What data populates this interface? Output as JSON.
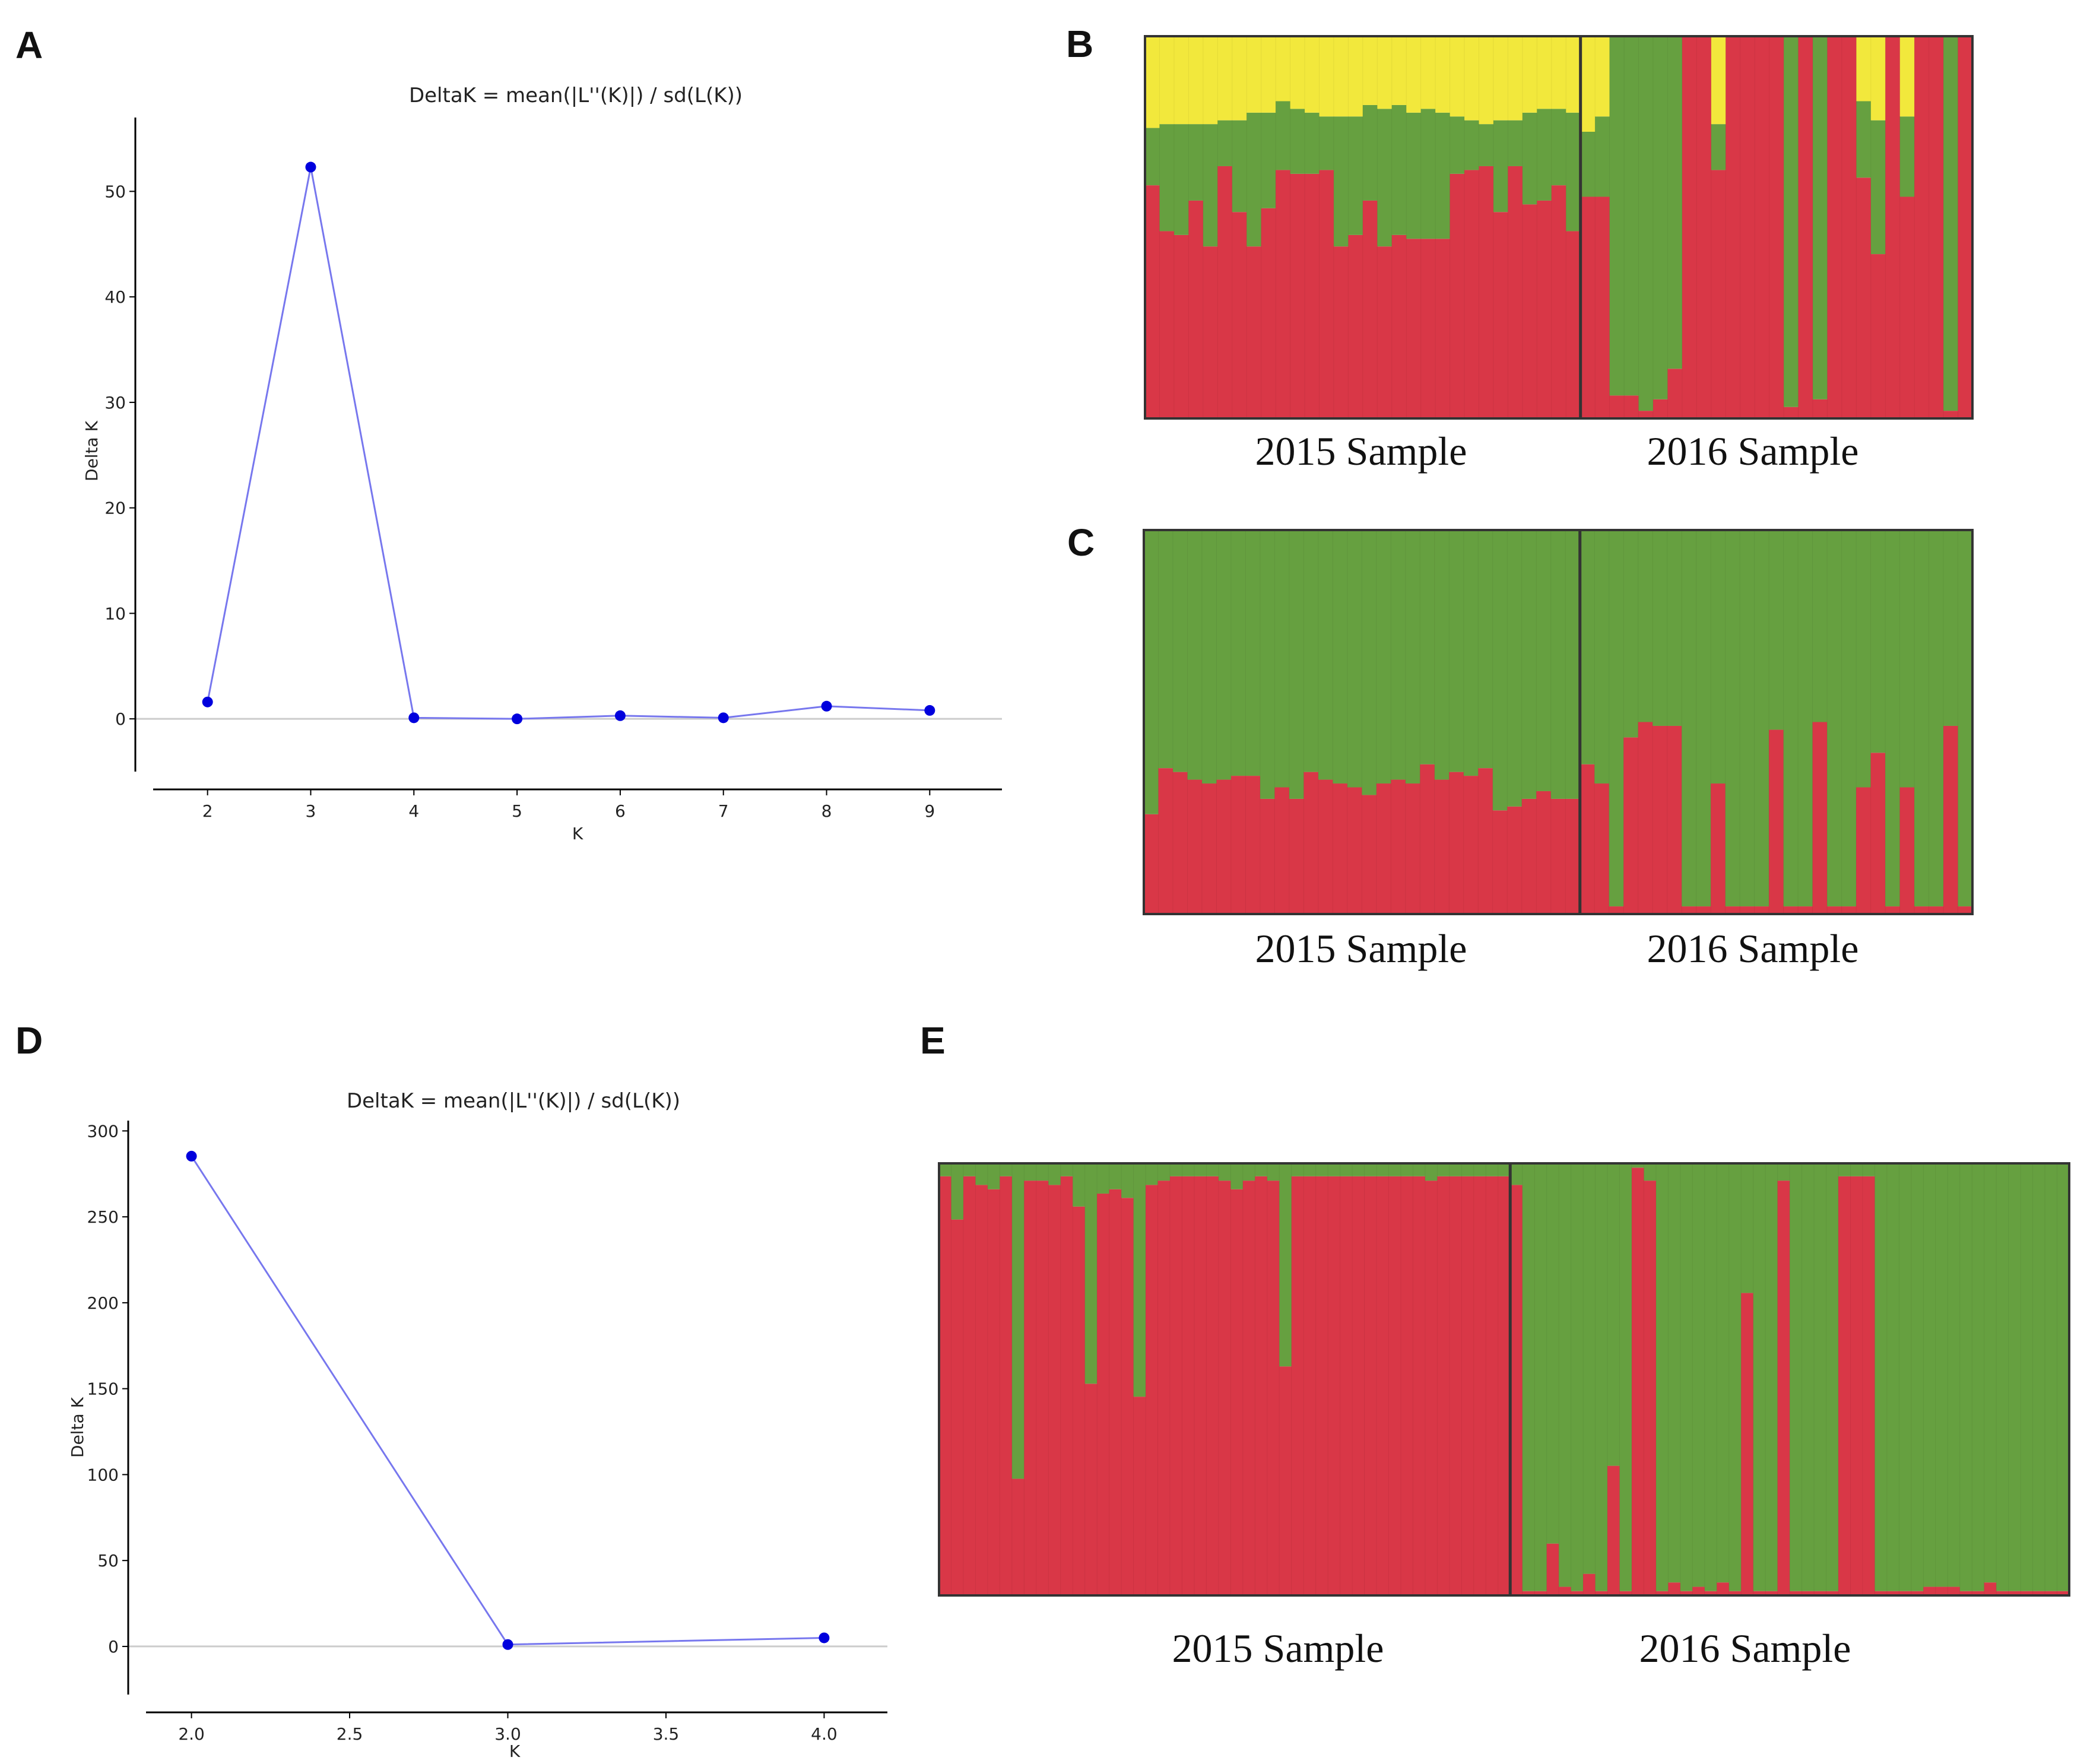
{
  "figure": {
    "panel_letters": {
      "A": "A",
      "B": "B",
      "C": "C",
      "D": "D",
      "E": "E"
    }
  },
  "colors": {
    "line": "#7777ee",
    "marker": "#0000dd",
    "axis": "#000000",
    "zero_line": "#cccccc",
    "cluster_red": "#d93747",
    "cluster_green": "#66a040",
    "cluster_yellow": "#f2e83c",
    "divider": "#333333"
  },
  "chart_data": [
    {
      "panel": "A",
      "type": "line",
      "title": "DeltaK = mean(|L''(K)|) / sd(L(K))",
      "xlabel": "K",
      "ylabel": "Delta K",
      "x": [
        2,
        3,
        4,
        5,
        6,
        7,
        8,
        9
      ],
      "values": [
        1.6,
        52.3,
        0.1,
        0.0,
        0.3,
        0.1,
        1.2,
        0.8
      ],
      "xlim": [
        1.3,
        9.7
      ],
      "ylim": [
        -5,
        57
      ],
      "xticks": [
        2,
        3,
        4,
        5,
        6,
        7,
        8,
        9
      ],
      "xtick_labels": [
        "2",
        "3",
        "4",
        "5",
        "6",
        "7",
        "8",
        "9"
      ],
      "yticks": [
        0,
        10,
        20,
        30,
        40,
        50
      ],
      "ytick_labels": [
        "0",
        "10",
        "20",
        "30",
        "40",
        "50"
      ]
    },
    {
      "panel": "B",
      "type": "bar",
      "stacked": true,
      "title": "",
      "ylim": [
        0,
        1
      ],
      "group_labels": [
        "2015 Sample",
        "2016 Sample"
      ],
      "group_sizes": [
        30,
        27
      ],
      "cluster_order": [
        "red",
        "green",
        "yellow"
      ],
      "series": [
        {
          "name": "red",
          "values": [
            0.61,
            0.49,
            0.48,
            0.57,
            0.45,
            0.66,
            0.54,
            0.45,
            0.55,
            0.65,
            0.64,
            0.64,
            0.65,
            0.45,
            0.48,
            0.57,
            0.45,
            0.48,
            0.47,
            0.47,
            0.47,
            0.64,
            0.65,
            0.66,
            0.54,
            0.66,
            0.56,
            0.57,
            0.61,
            0.49,
            0.58,
            0.58,
            0.06,
            0.06,
            0.02,
            0.05,
            0.13,
            1.0,
            1.0,
            0.65,
            1.0,
            1.0,
            1.0,
            1.0,
            0.03,
            1.0,
            0.05,
            1.0,
            1.0,
            0.63,
            0.43,
            1.0,
            0.58,
            1.0,
            1.0,
            0.02,
            1.0
          ]
        },
        {
          "name": "green",
          "values": [
            0.15,
            0.28,
            0.29,
            0.2,
            0.32,
            0.12,
            0.24,
            0.35,
            0.25,
            0.18,
            0.17,
            0.16,
            0.14,
            0.34,
            0.31,
            0.25,
            0.36,
            0.34,
            0.33,
            0.34,
            0.33,
            0.15,
            0.13,
            0.11,
            0.24,
            0.12,
            0.24,
            0.24,
            0.2,
            0.31,
            0.17,
            0.21,
            0.94,
            0.94,
            0.98,
            0.95,
            0.87,
            0.0,
            0.0,
            0.12,
            0.0,
            0.0,
            0.0,
            0.0,
            0.97,
            0.0,
            0.95,
            0.0,
            0.0,
            0.2,
            0.35,
            0.0,
            0.21,
            0.0,
            0.0,
            0.98,
            0.0
          ]
        },
        {
          "name": "yellow",
          "values": [
            0.24,
            0.23,
            0.23,
            0.23,
            0.23,
            0.22,
            0.22,
            0.2,
            0.2,
            0.17,
            0.19,
            0.2,
            0.21,
            0.21,
            0.21,
            0.18,
            0.19,
            0.18,
            0.2,
            0.19,
            0.2,
            0.21,
            0.22,
            0.23,
            0.22,
            0.22,
            0.2,
            0.19,
            0.19,
            0.2,
            0.25,
            0.21,
            0.0,
            0.0,
            0.0,
            0.0,
            0.0,
            0.0,
            0.0,
            0.23,
            0.0,
            0.0,
            0.0,
            0.0,
            0.0,
            0.0,
            0.0,
            0.0,
            0.0,
            0.17,
            0.22,
            0.0,
            0.21,
            0.0,
            0.0,
            0.0,
            0.0
          ]
        }
      ]
    },
    {
      "panel": "C",
      "type": "bar",
      "stacked": true,
      "title": "",
      "ylim": [
        0,
        1
      ],
      "group_labels": [
        "2015 Sample",
        "2016 Sample"
      ],
      "group_sizes": [
        30,
        27
      ],
      "cluster_order": [
        "red",
        "green"
      ],
      "series": [
        {
          "name": "red",
          "values": [
            0.26,
            0.38,
            0.37,
            0.35,
            0.34,
            0.35,
            0.36,
            0.36,
            0.3,
            0.33,
            0.3,
            0.37,
            0.35,
            0.34,
            0.33,
            0.31,
            0.34,
            0.35,
            0.34,
            0.39,
            0.35,
            0.37,
            0.36,
            0.38,
            0.27,
            0.28,
            0.3,
            0.32,
            0.3,
            0.3,
            0.39,
            0.34,
            0.02,
            0.46,
            0.5,
            0.49,
            0.49,
            0.02,
            0.02,
            0.34,
            0.02,
            0.02,
            0.02,
            0.48,
            0.02,
            0.02,
            0.5,
            0.02,
            0.02,
            0.33,
            0.42,
            0.02,
            0.33,
            0.02,
            0.02,
            0.49,
            0.02
          ]
        },
        {
          "name": "green",
          "values": [
            0.74,
            0.62,
            0.63,
            0.65,
            0.66,
            0.65,
            0.64,
            0.64,
            0.7,
            0.67,
            0.7,
            0.63,
            0.65,
            0.66,
            0.67,
            0.69,
            0.66,
            0.65,
            0.66,
            0.61,
            0.65,
            0.63,
            0.64,
            0.62,
            0.73,
            0.72,
            0.7,
            0.68,
            0.7,
            0.7,
            0.61,
            0.66,
            0.98,
            0.54,
            0.5,
            0.51,
            0.51,
            0.98,
            0.98,
            0.66,
            0.98,
            0.98,
            0.98,
            0.52,
            0.98,
            0.98,
            0.5,
            0.98,
            0.98,
            0.67,
            0.58,
            0.98,
            0.67,
            0.98,
            0.98,
            0.51,
            0.98
          ]
        }
      ]
    },
    {
      "panel": "D",
      "type": "line",
      "title": "DeltaK = mean(|L''(K)|) / sd(L(K))",
      "xlabel": "K",
      "ylabel": "Delta K",
      "x": [
        2.0,
        3.0,
        4.0
      ],
      "values": [
        285.3,
        1.1,
        5.0
      ],
      "xlim": [
        1.8,
        4.2
      ],
      "ylim": [
        -28,
        306
      ],
      "xticks": [
        2.0,
        2.5,
        3.0,
        3.5,
        4.0
      ],
      "xtick_labels": [
        "2.0",
        "2.5",
        "3.0",
        "3.5",
        "4.0"
      ],
      "yticks": [
        0,
        50,
        100,
        150,
        200,
        250,
        300
      ],
      "ytick_labels": [
        "0",
        "50",
        "100",
        "150",
        "200",
        "250",
        "300"
      ]
    },
    {
      "panel": "E",
      "type": "bar",
      "stacked": true,
      "title": "",
      "ylim": [
        0,
        1
      ],
      "group_labels": [
        "2015 Sample",
        "2016 Sample"
      ],
      "group_sizes": [
        47,
        46
      ],
      "cluster_order": [
        "red",
        "green"
      ],
      "series": [
        {
          "name": "red",
          "values": [
            0.97,
            0.87,
            0.97,
            0.95,
            0.94,
            0.97,
            0.27,
            0.96,
            0.96,
            0.95,
            0.97,
            0.9,
            0.49,
            0.93,
            0.94,
            0.92,
            0.46,
            0.95,
            0.96,
            0.97,
            0.97,
            0.97,
            0.97,
            0.96,
            0.94,
            0.96,
            0.97,
            0.96,
            0.53,
            0.97,
            0.97,
            0.97,
            0.97,
            0.97,
            0.97,
            0.97,
            0.97,
            0.97,
            0.97,
            0.97,
            0.96,
            0.97,
            0.97,
            0.97,
            0.97,
            0.97,
            0.97,
            0.95,
            0.01,
            0.01,
            0.12,
            0.02,
            0.01,
            0.05,
            0.01,
            0.3,
            0.01,
            0.99,
            0.96,
            0.01,
            0.03,
            0.01,
            0.02,
            0.01,
            0.03,
            0.01,
            0.7,
            0.01,
            0.01,
            0.96,
            0.01,
            0.01,
            0.01,
            0.01,
            0.97,
            0.97,
            0.97,
            0.01,
            0.01,
            0.01,
            0.01,
            0.02,
            0.02,
            0.02,
            0.01,
            0.01,
            0.03,
            0.01,
            0.01,
            0.01,
            0.01,
            0.01,
            0.01
          ]
        },
        {
          "name": "green",
          "values": [
            0.03,
            0.13,
            0.03,
            0.05,
            0.06,
            0.03,
            0.73,
            0.04,
            0.04,
            0.05,
            0.03,
            0.1,
            0.51,
            0.07,
            0.06,
            0.08,
            0.54,
            0.05,
            0.04,
            0.03,
            0.03,
            0.03,
            0.03,
            0.04,
            0.06,
            0.04,
            0.03,
            0.04,
            0.47,
            0.03,
            0.03,
            0.03,
            0.03,
            0.03,
            0.03,
            0.03,
            0.03,
            0.03,
            0.03,
            0.03,
            0.04,
            0.03,
            0.03,
            0.03,
            0.03,
            0.03,
            0.03,
            0.05,
            0.99,
            0.99,
            0.88,
            0.98,
            0.99,
            0.95,
            0.99,
            0.7,
            0.99,
            0.01,
            0.04,
            0.99,
            0.97,
            0.99,
            0.98,
            0.99,
            0.97,
            0.99,
            0.3,
            0.99,
            0.99,
            0.04,
            0.99,
            0.99,
            0.99,
            0.99,
            0.03,
            0.03,
            0.03,
            0.99,
            0.99,
            0.99,
            0.99,
            0.98,
            0.98,
            0.98,
            0.99,
            0.99,
            0.97,
            0.99,
            0.99,
            0.99,
            0.99,
            0.99,
            0.99
          ]
        }
      ]
    }
  ]
}
